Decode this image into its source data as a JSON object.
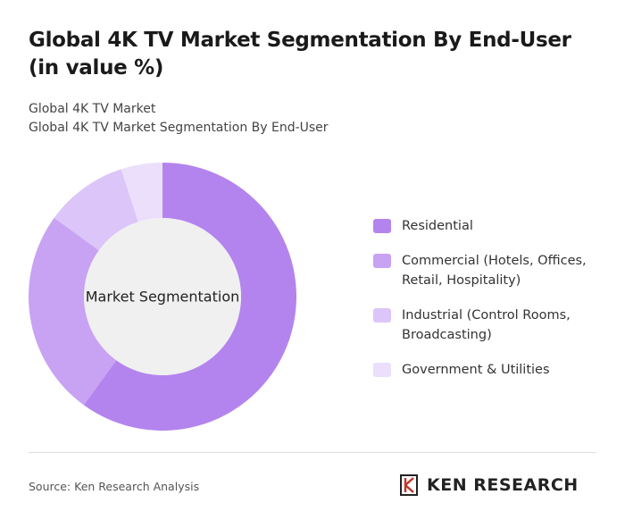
{
  "chart_data": {
    "type": "donut",
    "title": "Global 4K TV Market Segmentation By End-User (in value %)",
    "subtitle": [
      "Global 4K TV Market",
      "Global 4K TV Market Segmentation By End-User"
    ],
    "center_label": "Market Segmentation",
    "categories": [
      "Residential",
      "Commercial (Hotels, Offices, Retail, Hospitality)",
      "Industrial (Control Rooms, Broadcasting)",
      "Government & Utilities"
    ],
    "values": [
      60,
      25,
      10,
      5
    ],
    "colors": [
      "#b384ee",
      "#c8a2f3",
      "#dcc5f8",
      "#ebdffb"
    ],
    "source": "Source: Ken Research Analysis",
    "brand": "KEN RESEARCH"
  }
}
